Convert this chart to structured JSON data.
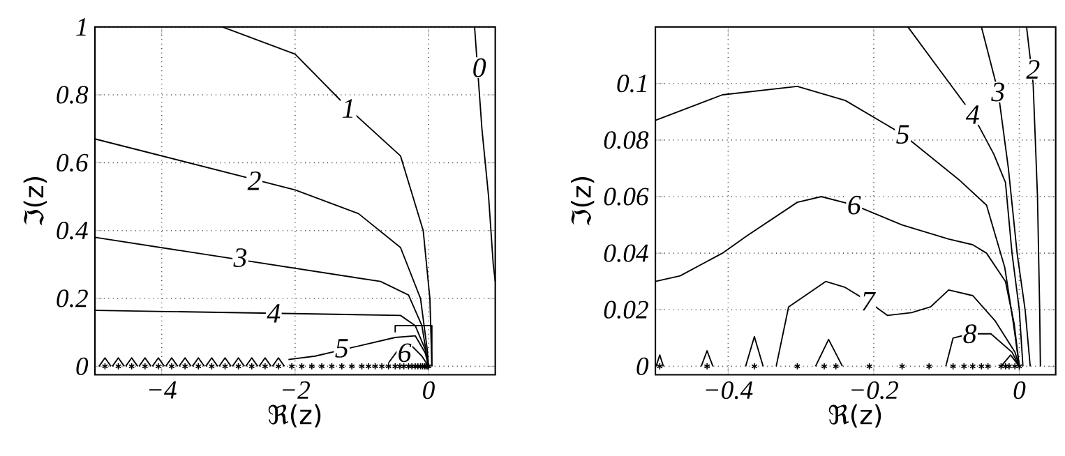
{
  "chart_data": [
    {
      "type": "line",
      "xlabel": "ℜ(z)",
      "ylabel": "ℑ(z)",
      "xlim": [
        -5,
        1
      ],
      "ylim": [
        -0.025,
        1
      ],
      "xticks": [
        {
          "value": -4,
          "label": "−4"
        },
        {
          "value": -2,
          "label": "−2"
        },
        0
      ],
      "yticks": [
        0,
        0.2,
        0.4,
        0.6,
        0.8,
        1
      ],
      "grid": true,
      "series": [
        {
          "color": "#000000",
          "x": [
            0.69,
            0.8,
            0.9,
            0.97,
            1.0
          ],
          "values": [
            1,
            0.7,
            0.5,
            0.3,
            0.25
          ]
        },
        {
          "color": "#000000",
          "x": [
            -3.09,
            -2,
            -1.2,
            -0.42,
            -0.08,
            0.02,
            0.05
          ],
          "values": [
            1,
            0.92,
            0.76,
            0.62,
            0.4,
            0.2,
            0
          ]
        },
        {
          "color": "#000000",
          "x": [
            -5,
            -2,
            -1.05,
            -0.42,
            -0.12,
            -0.02,
            0
          ],
          "values": [
            0.67,
            0.52,
            0.45,
            0.35,
            0.2,
            0.05,
            0
          ]
        },
        {
          "color": "#000000",
          "x": [
            -5,
            -0.72,
            -0.3,
            -0.1,
            0
          ],
          "values": [
            0.38,
            0.25,
            0.21,
            0.12,
            0
          ]
        },
        {
          "color": "#000000",
          "x": [
            -5,
            -0.42,
            -0.2,
            -0.05,
            0
          ],
          "values": [
            0.165,
            0.15,
            0.12,
            0.05,
            0
          ]
        },
        {
          "color": "#000000",
          "x": [
            -2.1,
            -1.7,
            -0.5,
            -0.2,
            -0.05,
            0
          ],
          "values": [
            0.02,
            0.03,
            0.085,
            0.09,
            0.04,
            0
          ]
        },
        {
          "color": "#000000",
          "x": [
            -0.6,
            -0.45,
            -0.25,
            -0.1,
            0
          ],
          "values": [
            0.01,
            0.05,
            0.06,
            0.03,
            0
          ]
        },
        {
          "color": "#000000",
          "x": [
            -0.5,
            -0.5,
            0.05,
            0.05
          ],
          "values": [
            0.1,
            0.12,
            0.12,
            0
          ]
        },
        {
          "color": "#000000",
          "x": [
            -4.94,
            -4.85,
            -4.76
          ],
          "values": [
            0,
            0.025,
            0
          ]
        },
        {
          "color": "#000000",
          "x": [
            -4.74,
            -4.65,
            -4.56
          ],
          "values": [
            0,
            0.025,
            0
          ]
        },
        {
          "color": "#000000",
          "x": [
            -4.54,
            -4.45,
            -4.36
          ],
          "values": [
            0,
            0.025,
            0
          ]
        },
        {
          "color": "#000000",
          "x": [
            -4.34,
            -4.25,
            -4.16
          ],
          "values": [
            0,
            0.025,
            0
          ]
        },
        {
          "color": "#000000",
          "x": [
            -4.14,
            -4.05,
            -3.96
          ],
          "values": [
            0,
            0.025,
            0
          ]
        },
        {
          "color": "#000000",
          "x": [
            -3.94,
            -3.85,
            -3.76
          ],
          "values": [
            0,
            0.025,
            0
          ]
        },
        {
          "color": "#000000",
          "x": [
            -3.74,
            -3.65,
            -3.56
          ],
          "values": [
            0,
            0.025,
            0
          ]
        },
        {
          "color": "#000000",
          "x": [
            -3.54,
            -3.45,
            -3.36
          ],
          "values": [
            0,
            0.025,
            0
          ]
        },
        {
          "color": "#000000",
          "x": [
            -3.34,
            -3.25,
            -3.16
          ],
          "values": [
            0,
            0.025,
            0
          ]
        },
        {
          "color": "#000000",
          "x": [
            -3.14,
            -3.05,
            -2.96
          ],
          "values": [
            0,
            0.025,
            0
          ]
        },
        {
          "color": "#000000",
          "x": [
            -2.94,
            -2.85,
            -2.76
          ],
          "values": [
            0,
            0.025,
            0
          ]
        },
        {
          "color": "#000000",
          "x": [
            -2.74,
            -2.65,
            -2.56
          ],
          "values": [
            0,
            0.025,
            0
          ]
        },
        {
          "color": "#000000",
          "x": [
            -2.54,
            -2.45,
            -2.36
          ],
          "values": [
            0,
            0.025,
            0
          ]
        },
        {
          "color": "#000000",
          "x": [
            -2.34,
            -2.25,
            -2.16
          ],
          "values": [
            0,
            0.025,
            0
          ]
        },
        {
          "type": "scatter",
          "marker": "cross",
          "color": "#000000",
          "x": [
            -4.85,
            -4.65,
            -4.45,
            -4.25,
            -4.05,
            -3.85,
            -3.65,
            -3.45,
            -3.25,
            -3.05,
            -2.85,
            -2.65,
            -2.45,
            -2.25,
            -2.05,
            -1.9,
            -1.75,
            -1.6,
            -1.45,
            -1.3,
            -1.15,
            -1.0,
            -0.9,
            -0.8,
            -0.7,
            -0.6,
            -0.5,
            -0.43,
            -0.37,
            -0.3,
            -0.25,
            -0.2,
            -0.16,
            -0.12,
            -0.09,
            -0.06,
            -0.04,
            -0.02,
            0
          ],
          "values": [
            0,
            0,
            0,
            0,
            0,
            0,
            0,
            0,
            0,
            0,
            0,
            0,
            0,
            0,
            0,
            0,
            0,
            0,
            0,
            0,
            0,
            0,
            0,
            0,
            0,
            0,
            0,
            0,
            0,
            0,
            0,
            0,
            0,
            0,
            0,
            0,
            0,
            0,
            0
          ]
        }
      ],
      "annotations": [
        {
          "text": "0",
          "x": 0.76,
          "y": 0.88
        },
        {
          "text": "1",
          "x": -1.2,
          "y": 0.76
        },
        {
          "text": "2",
          "x": -2.61,
          "y": 0.547
        },
        {
          "text": "3",
          "x": -2.82,
          "y": 0.32
        },
        {
          "text": "4",
          "x": -2.32,
          "y": 0.156
        },
        {
          "text": "5",
          "x": -1.3,
          "y": 0.053
        },
        {
          "text": "6",
          "x": -0.36,
          "y": 0.04
        }
      ]
    },
    {
      "type": "line",
      "xlabel": "ℜ(z)",
      "ylabel": "ℑ(z)",
      "xlim": [
        -0.5,
        0.05
      ],
      "ylim": [
        -0.003,
        0.12
      ],
      "xticks": [
        {
          "value": -0.4,
          "label": "−0.4"
        },
        {
          "value": -0.2,
          "label": "−0.2"
        },
        0
      ],
      "yticks": [
        0,
        0.02,
        0.04,
        0.06,
        0.08,
        0.1
      ],
      "grid": true,
      "series": [
        {
          "color": "#000000",
          "x": [
            0.01,
            0.019,
            0.025,
            0.028,
            0.029
          ],
          "values": [
            0.12,
            0.1,
            0.06,
            0.02,
            0
          ]
        },
        {
          "color": "#000000",
          "x": [
            -0.052,
            -0.029,
            -0.015,
            -0.003,
            0.008,
            0.015
          ],
          "values": [
            0.12,
            0.097,
            0.07,
            0.04,
            0.02,
            0
          ]
        },
        {
          "color": "#000000",
          "x": [
            -0.153,
            -0.11,
            -0.064,
            -0.035,
            -0.019,
            -0.01,
            0,
            0.005
          ],
          "values": [
            0.12,
            0.105,
            0.089,
            0.075,
            0.065,
            0.04,
            0.02,
            0
          ]
        },
        {
          "color": "#000000",
          "x": [
            -0.5,
            -0.408,
            -0.305,
            -0.239,
            -0.16,
            -0.083,
            -0.045,
            -0.02,
            -0.008,
            0
          ],
          "values": [
            0.087,
            0.096,
            0.099,
            0.094,
            0.082,
            0.066,
            0.057,
            0.035,
            0.015,
            0
          ]
        },
        {
          "color": "#000000",
          "x": [
            -0.5,
            -0.466,
            -0.408,
            -0.375,
            -0.305,
            -0.272,
            -0.227,
            -0.161,
            -0.097,
            -0.064,
            -0.045,
            -0.019,
            -0.007,
            0
          ],
          "values": [
            0.03,
            0.032,
            0.04,
            0.046,
            0.058,
            0.06,
            0.057,
            0.05,
            0.045,
            0.043,
            0.04,
            0.03,
            0.015,
            0
          ]
        },
        {
          "color": "#000000",
          "x": [
            -0.334,
            -0.317,
            -0.266,
            -0.24,
            -0.208,
            -0.181,
            -0.148,
            -0.122,
            -0.097,
            -0.064,
            -0.033,
            -0.006,
            0
          ],
          "values": [
            0,
            0.021,
            0.03,
            0.028,
            0.023,
            0.018,
            0.019,
            0.021,
            0.027,
            0.025,
            0.016,
            0.005,
            0
          ]
        },
        {
          "color": "#000000",
          "x": [
            -0.101,
            -0.091,
            -0.068,
            -0.039,
            -0.01,
            0
          ],
          "values": [
            0,
            0.01,
            0.0115,
            0.0115,
            0.005,
            0
          ]
        },
        {
          "color": "#000000",
          "x": [
            -0.499,
            -0.494,
            -0.489
          ],
          "values": [
            0,
            0.004,
            0
          ]
        },
        {
          "color": "#000000",
          "x": [
            -0.437,
            -0.429,
            -0.421
          ],
          "values": [
            0,
            0.0055,
            0
          ]
        },
        {
          "color": "#000000",
          "x": [
            -0.376,
            -0.364,
            -0.352
          ],
          "values": [
            0,
            0.0105,
            0
          ]
        },
        {
          "color": "#000000",
          "x": [
            -0.28,
            -0.262,
            -0.243
          ],
          "values": [
            0,
            0.0095,
            0
          ]
        },
        {
          "color": "#000000",
          "x": [
            -0.025,
            -0.012,
            0
          ],
          "values": [
            0,
            0.004,
            0
          ]
        },
        {
          "type": "scatter",
          "marker": "cross",
          "color": "#000000",
          "x": [
            -0.494,
            -0.429,
            -0.364,
            -0.305,
            -0.268,
            -0.252,
            -0.206,
            -0.161,
            -0.124,
            -0.091,
            -0.076,
            -0.064,
            -0.052,
            -0.043,
            -0.025,
            -0.019,
            -0.014,
            -0.006,
            0
          ],
          "values": [
            0,
            0,
            0,
            0,
            0,
            0,
            0,
            0,
            0,
            0,
            0,
            0,
            0,
            0,
            0,
            0,
            0,
            0,
            0
          ]
        }
      ],
      "annotations": [
        {
          "text": "2",
          "x": 0.019,
          "y": 0.105
        },
        {
          "text": "3",
          "x": -0.029,
          "y": 0.097
        },
        {
          "text": "4",
          "x": -0.064,
          "y": 0.089
        },
        {
          "text": "5",
          "x": -0.16,
          "y": 0.082
        },
        {
          "text": "6",
          "x": -0.227,
          "y": 0.057
        },
        {
          "text": "7",
          "x": -0.208,
          "y": 0.023
        },
        {
          "text": "8",
          "x": -0.068,
          "y": 0.0115
        }
      ]
    }
  ]
}
